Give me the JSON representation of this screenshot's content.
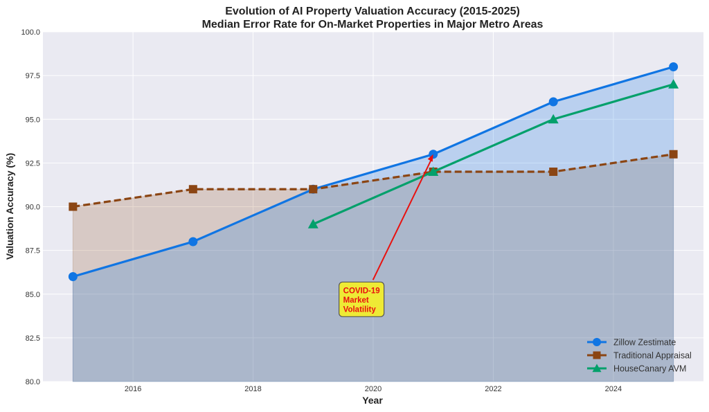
{
  "chart_data": {
    "type": "line",
    "title": "Evolution of AI Property Valuation Accuracy (2015-2025)",
    "subtitle": "Median Error Rate for On-Market Properties in Major Metro Areas",
    "xlabel": "Year",
    "ylabel": "Valuation Accuracy (%)",
    "xlim": [
      2014.5,
      2025.5
    ],
    "ylim": [
      80,
      100
    ],
    "xticks": [
      "2016",
      "2018",
      "2020",
      "2022",
      "2024"
    ],
    "yticks": [
      "80.0",
      "82.5",
      "85.0",
      "87.5",
      "90.0",
      "92.5",
      "95.0",
      "97.5",
      "100.0"
    ],
    "grid": true,
    "legend_position": "lower-right",
    "series": [
      {
        "name": "Zillow Zestimate",
        "color": "#1075e3",
        "marker": "circle",
        "dash": false,
        "fill": true,
        "x": [
          2015,
          2017,
          2019,
          2021,
          2023,
          2025
        ],
        "values": [
          86,
          88,
          91,
          93,
          96,
          98
        ]
      },
      {
        "name": "Traditional Appraisal",
        "color": "#8b4513",
        "marker": "square",
        "dash": true,
        "fill": true,
        "x": [
          2015,
          2017,
          2019,
          2021,
          2023,
          2025
        ],
        "values": [
          90,
          91,
          91,
          92,
          92,
          93
        ]
      },
      {
        "name": "HouseCanary AVM",
        "color": "#03a06b",
        "marker": "triangle",
        "dash": false,
        "fill": false,
        "x": [
          2019,
          2021,
          2023,
          2025
        ],
        "values": [
          89,
          92,
          95,
          97
        ]
      }
    ],
    "annotation": {
      "lines": [
        "COVID-19",
        "Market",
        "Volatility"
      ],
      "text_at": [
        2019.8,
        84.7
      ],
      "arrow_to": [
        2021,
        93
      ]
    }
  }
}
